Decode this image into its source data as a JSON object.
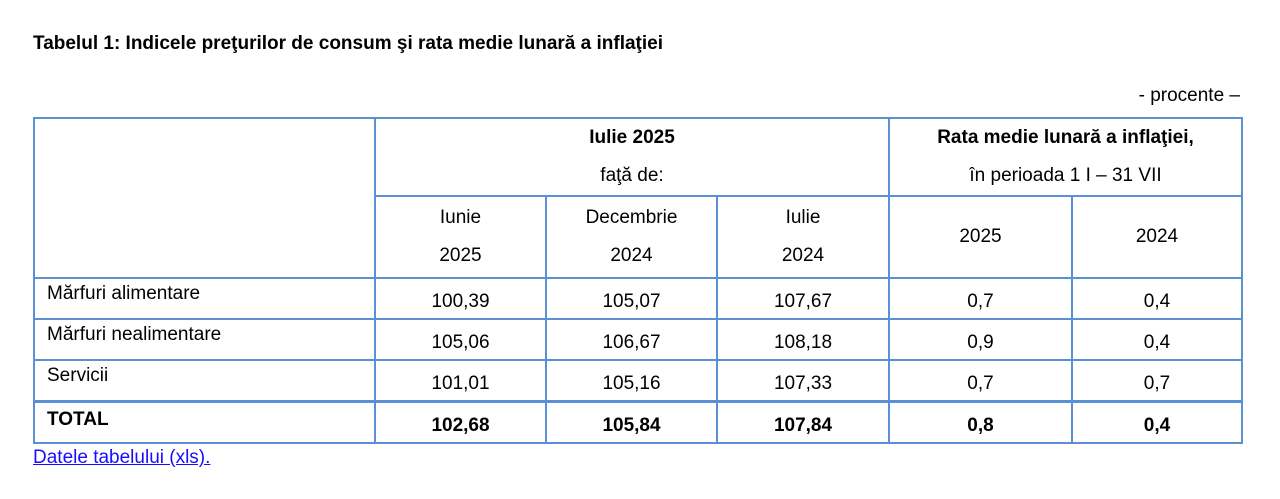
{
  "title": "Tabelul 1: Indicele preţurilor de consum şi rata medie lunară a inflaţiei",
  "unit": "- procente –",
  "header": {
    "group1_title": "Iulie 2025",
    "group1_sub": "faţă de:",
    "group2_title": "Rata medie lunară a inflaţiei,",
    "group2_sub": "în perioada 1 I – 31 VII",
    "columns": [
      {
        "line1": "Iunie",
        "line2": "2025"
      },
      {
        "line1": "Decembrie",
        "line2": "2024"
      },
      {
        "line1": "Iulie",
        "line2": "2024"
      },
      {
        "line1": "2025"
      },
      {
        "line1": "2024"
      }
    ]
  },
  "rows": [
    {
      "label": "Mărfuri alimentare",
      "values": [
        "100,39",
        "105,07",
        "107,67",
        "0,7",
        "0,4"
      ]
    },
    {
      "label": "Mărfuri nealimentare",
      "values": [
        "105,06",
        "106,67",
        "108,18",
        "0,9",
        "0,4"
      ]
    },
    {
      "label": "Servicii",
      "values": [
        "101,01",
        "105,16",
        "107,33",
        "0,7",
        "0,7"
      ]
    },
    {
      "label": "TOTAL",
      "values": [
        "102,68",
        "105,84",
        "107,84",
        "0,8",
        "0,4"
      ]
    }
  ],
  "link_text": "Datele tabelului (xls)."
}
